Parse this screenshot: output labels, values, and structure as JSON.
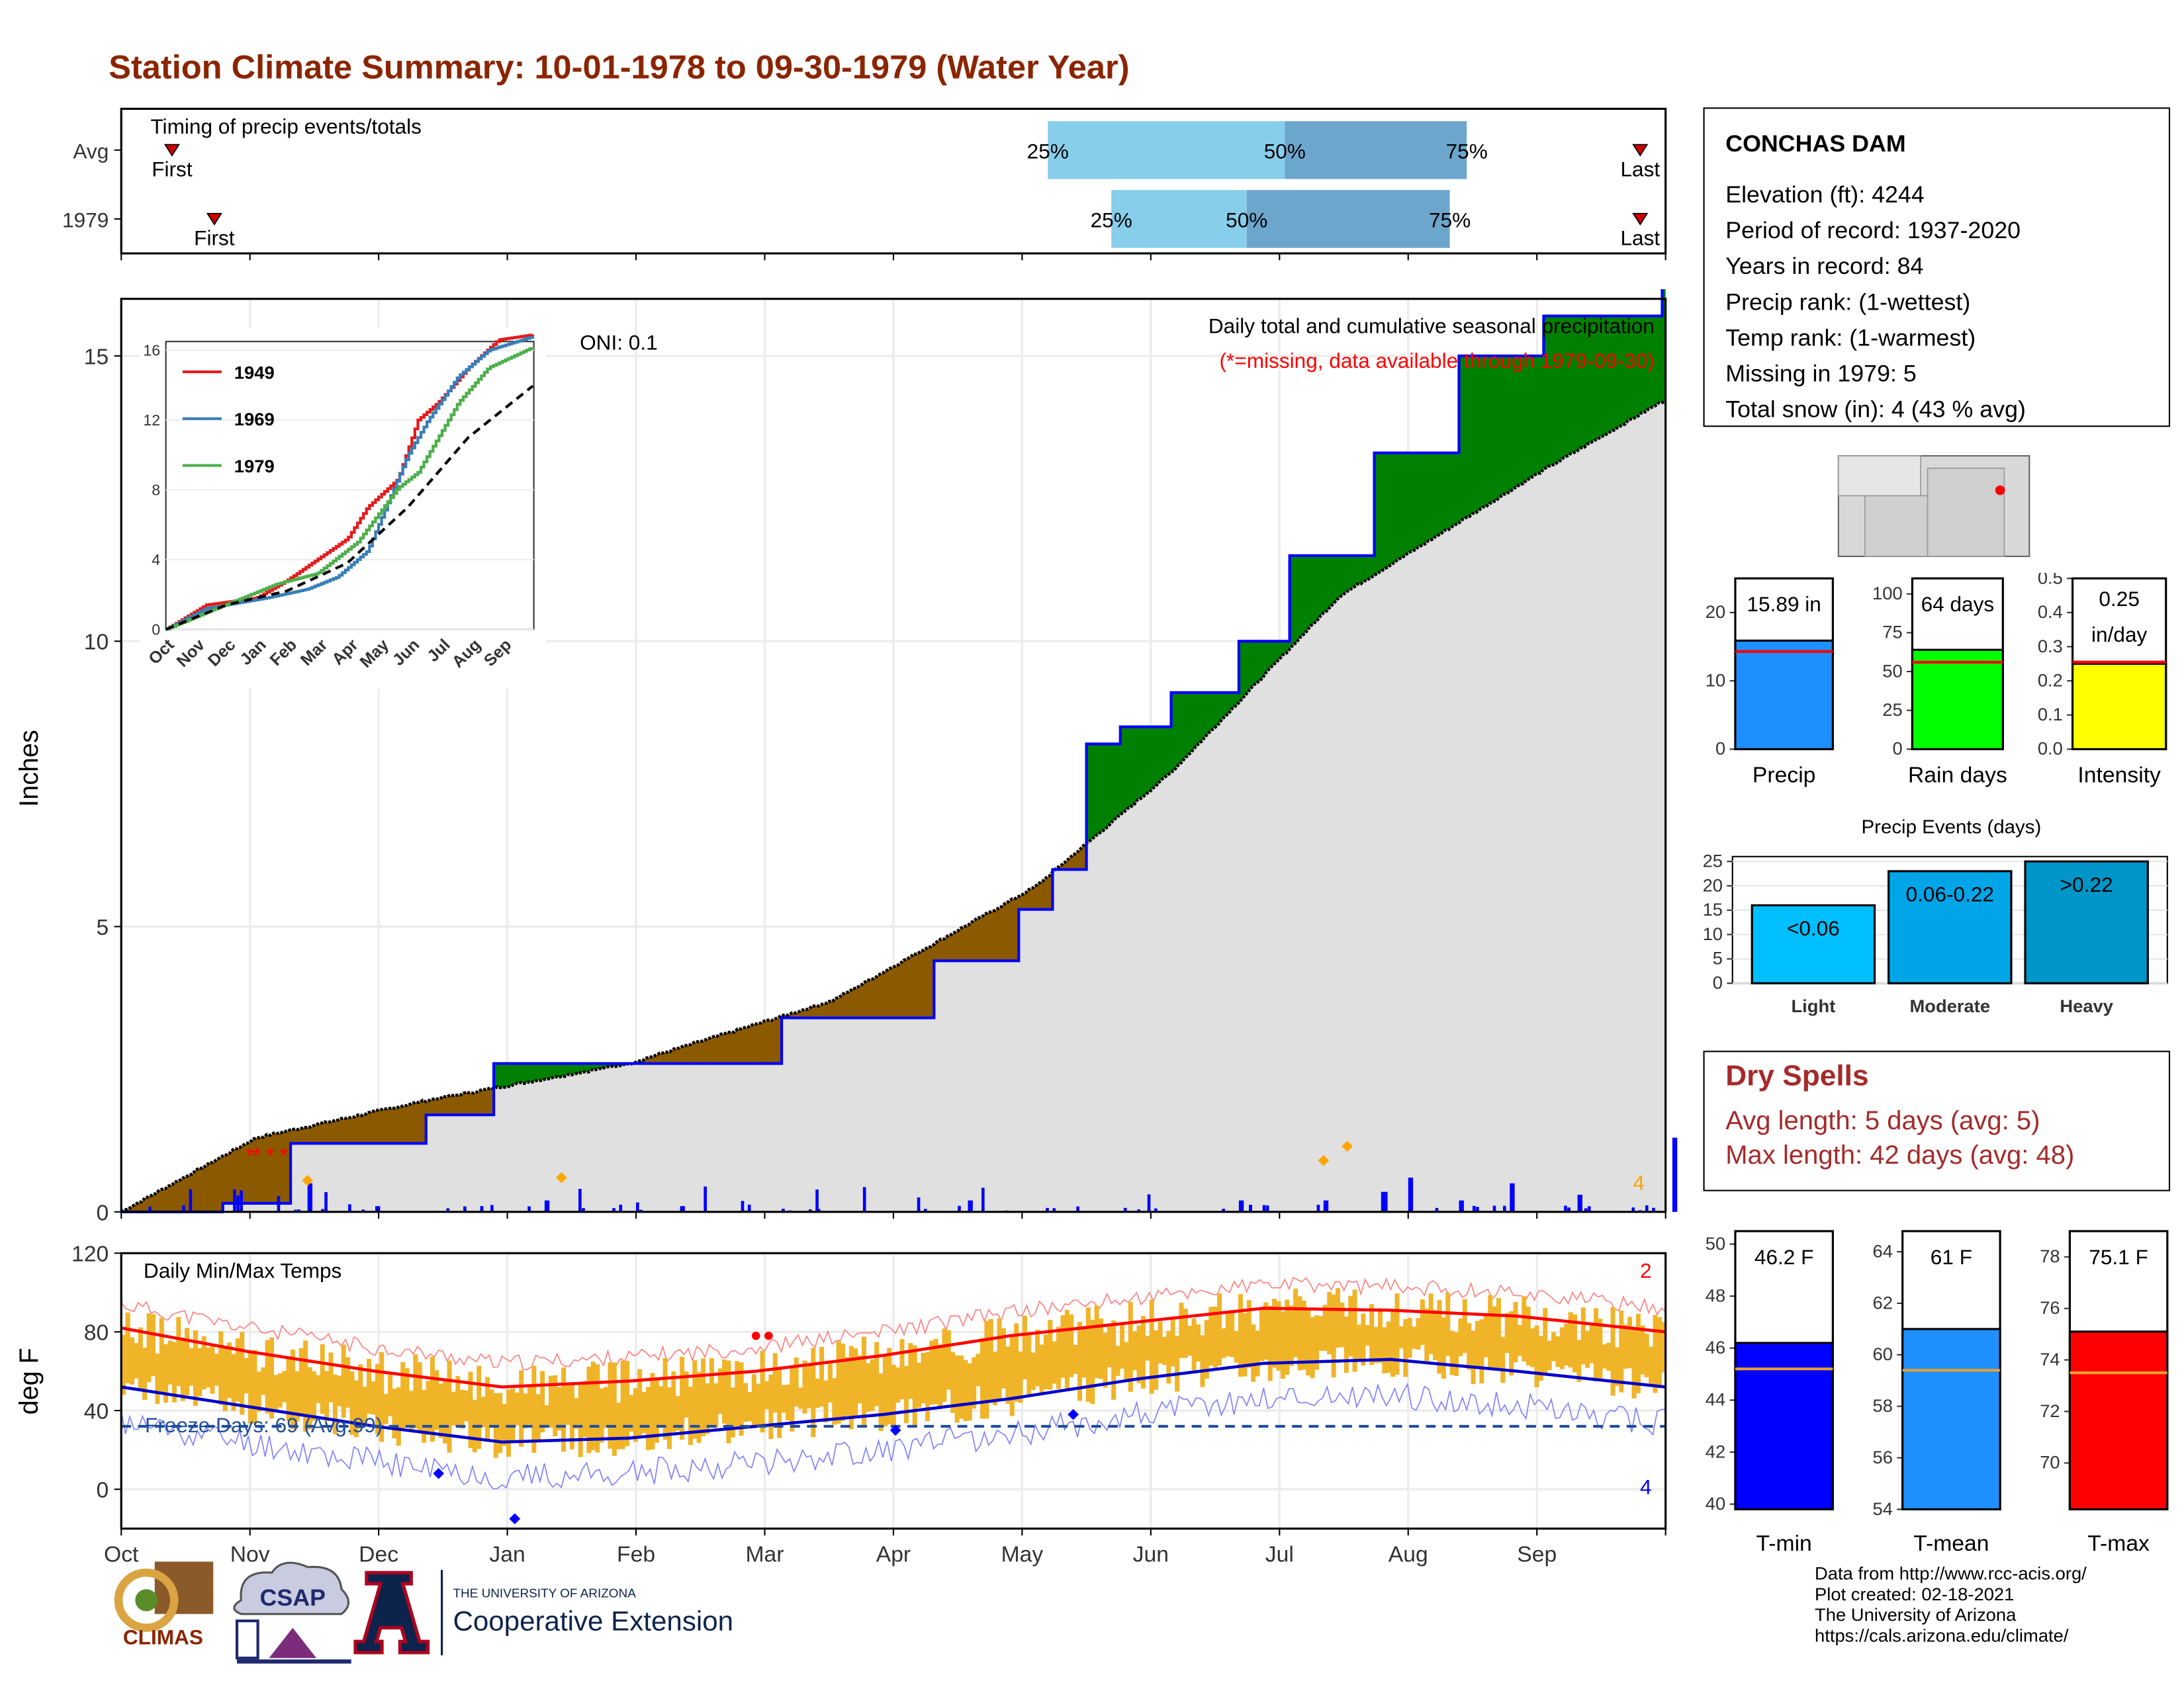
{
  "title": "Station Climate Summary: 10-01-1978 to 09-30-1979 (Water Year)",
  "timing": {
    "title": "Timing of precip events/totals",
    "rows": [
      {
        "label": "Avg",
        "first_date": "1978-10-13",
        "q25": "1979-05-08",
        "q50": "1979-07-03",
        "q75": "1979-08-15",
        "last_date": "1979-09-25"
      },
      {
        "label": "1979",
        "first_date": "1978-10-23",
        "q25": "1979-05-23",
        "q50": "1979-06-24",
        "q75": "1979-08-11",
        "last_date": "1979-09-25"
      }
    ],
    "first_label": "First",
    "last_label": "Last",
    "q25_label": "25%",
    "q50_label": "50%",
    "q75_label": "75%"
  },
  "station": {
    "name": "CONCHAS DAM",
    "lines": [
      "Elevation (ft): 4244",
      "Period of record: 1937-2020",
      "Years in record: 84",
      "Precip rank:  (1-wettest)",
      "Temp rank:  (1-warmest)",
      "Missing in 1979: 5",
      "Total snow (in): 4 (43 % avg)"
    ]
  },
  "precip_chart": {
    "ylabel": "Inches",
    "oni": "ONI: 0.1",
    "legend_title": "Daily total and cumulative seasonal precipitation",
    "legend_missing": "(*=missing, data available through 1979-09-30)",
    "snow_count": "4",
    "months": [
      "Oct",
      "Nov",
      "Dec",
      "Jan",
      "Feb",
      "Mar",
      "Apr",
      "May",
      "Jun",
      "Jul",
      "Aug",
      "Sep"
    ],
    "yticks": [
      0,
      5,
      10,
      15
    ]
  },
  "inset": {
    "yticks": [
      0,
      4,
      8,
      12,
      16
    ],
    "months": [
      "Oct",
      "Nov",
      "Dec",
      "Jan",
      "Feb",
      "Mar",
      "Apr",
      "May",
      "Jun",
      "Jul",
      "Aug",
      "Sep"
    ],
    "series": [
      {
        "name": "1949",
        "color": "#E41A1C"
      },
      {
        "name": "1969",
        "color": "#377EB8"
      },
      {
        "name": "1979",
        "color": "#4DAF4A"
      }
    ]
  },
  "bars": {
    "precip": {
      "value_label": "15.89 in",
      "value": 15.89,
      "avg": 14.3,
      "ylim": [
        0,
        25
      ],
      "yticks": [
        0,
        10,
        20
      ],
      "label": "Precip",
      "color": "#1E90FF"
    },
    "rain": {
      "value_label": "64 days",
      "value": 64,
      "avg": 56,
      "ylim": [
        0,
        110
      ],
      "yticks": [
        0,
        25,
        50,
        75,
        100
      ],
      "label": "Rain days",
      "color": "#00FF00"
    },
    "intensity": {
      "value_label1": "0.25",
      "value_label2": "in/day",
      "value": 0.25,
      "avg": 0.255,
      "ylim": [
        0,
        0.5
      ],
      "yticks": [
        "0.0",
        "0.1",
        "0.2",
        "0.3",
        "0.4",
        "0.5"
      ],
      "label": "Intensity",
      "color": "#FFFF00"
    }
  },
  "events": {
    "title": "Precip Events (days)",
    "ylim": [
      0,
      26
    ],
    "yticks": [
      0,
      5,
      10,
      15,
      20,
      25
    ],
    "categories": [
      "Light",
      "Moderate",
      "Heavy"
    ],
    "values": [
      16,
      23,
      25
    ],
    "labels": [
      "<0.06",
      "0.06-0.22",
      ">0.22"
    ],
    "colors": [
      "#00BFFF",
      "#00A5E8",
      "#0095C8"
    ]
  },
  "dry": {
    "title": "Dry Spells",
    "avg_line": "Avg length: 5 days (avg: 5)",
    "max_line": "Max length: 42 days (avg: 48)"
  },
  "temp_chart": {
    "ylabel": "deg F",
    "title": "Daily Min/Max Temps",
    "freeze": "Freeze Days: 69 (Avg:99)",
    "hot_count": "2",
    "cold_count": "4",
    "yticks": [
      0,
      40,
      80,
      120
    ],
    "months": [
      "Oct",
      "Nov",
      "Dec",
      "Jan",
      "Feb",
      "Mar",
      "Apr",
      "May",
      "Jun",
      "Jul",
      "Aug",
      "Sep"
    ]
  },
  "tbars": {
    "tmin": {
      "value_label": "46.2 F",
      "value": 46.2,
      "avg": 45.2,
      "ylim": [
        39.8,
        50.5
      ],
      "yticks": [
        40,
        42,
        44,
        46,
        48,
        50
      ],
      "label": "T-min",
      "color": "#0000FF"
    },
    "tmean": {
      "value_label": "61 F",
      "value": 61.0,
      "avg": 59.4,
      "ylim": [
        54,
        64.8
      ],
      "yticks": [
        54,
        56,
        58,
        60,
        62,
        64
      ],
      "label": "T-mean",
      "color": "#1E90FF"
    },
    "tmax": {
      "value_label": "75.1 F",
      "value": 75.1,
      "avg": 73.5,
      "ylim": [
        68.2,
        79
      ],
      "yticks": [
        70,
        72,
        74,
        76,
        78
      ],
      "label": "T-max",
      "color": "#FF0000"
    }
  },
  "source": [
    "Data from http://www.rcc-acis.org/",
    "Plot created: 02-18-2021",
    "The University of Arizona",
    "https://cals.arizona.edu/climate/"
  ],
  "logos": {
    "climas": "CLIMAS",
    "csap": "CSAP",
    "ua_small": "THE UNIVERSITY OF ARIZONA",
    "ua_big": "Cooperative Extension",
    "ua_letter": "A"
  },
  "chart_data": [
    {
      "type": "area",
      "title": "Daily total and cumulative seasonal precipitation",
      "ylabel": "Inches",
      "ylim": [
        0,
        16.0
      ],
      "months": [
        "Oct",
        "Nov",
        "Dec",
        "Jan",
        "Feb",
        "Mar",
        "Apr",
        "May",
        "Jun",
        "Jul",
        "Aug",
        "Sep"
      ],
      "cumulative_1979": [
        [
          0,
          0
        ],
        [
          30,
          0.15
        ],
        [
          50,
          1.2
        ],
        [
          90,
          1.7
        ],
        [
          110,
          2.6
        ],
        [
          170,
          2.6
        ],
        [
          195,
          3.4
        ],
        [
          240,
          4.4
        ],
        [
          265,
          5.3
        ],
        [
          275,
          6.0
        ],
        [
          285,
          8.2
        ],
        [
          295,
          8.5
        ],
        [
          310,
          9.1
        ],
        [
          330,
          10.0
        ],
        [
          345,
          11.5
        ],
        [
          370,
          13.3
        ],
        [
          395,
          15.0
        ],
        [
          420,
          15.7
        ],
        [
          455,
          16.2
        ]
      ],
      "cumulative_average": [
        [
          0,
          0
        ],
        [
          40,
          1.3
        ],
        [
          90,
          1.95
        ],
        [
          150,
          2.6
        ],
        [
          210,
          3.7
        ],
        [
          270,
          5.7
        ],
        [
          310,
          7.7
        ],
        [
          360,
          10.8
        ],
        [
          420,
          13.0
        ],
        [
          455,
          14.2
        ]
      ],
      "daily_precip": [
        [
          55,
          0.5
        ],
        [
          75,
          0.1
        ],
        [
          125,
          0.2
        ],
        [
          165,
          0.1
        ],
        [
          205,
          0.05
        ],
        [
          250,
          0.2
        ],
        [
          330,
          0.2
        ],
        [
          355,
          0.2
        ],
        [
          372,
          0.35
        ],
        [
          380,
          0.6
        ],
        [
          395,
          0.2
        ],
        [
          410,
          0.5
        ],
        [
          430,
          0.3
        ],
        [
          458,
          1.3
        ],
        [
          468,
          0.15
        ]
      ]
    },
    {
      "type": "line",
      "title": "Daily Min/Max Temps",
      "ylabel": "deg F",
      "ylim": [
        -20,
        120
      ],
      "months": [
        "Oct",
        "Nov",
        "Dec",
        "Jan",
        "Feb",
        "Mar",
        "Apr",
        "May",
        "Jun",
        "Jul",
        "Aug",
        "Sep"
      ],
      "avg_max": [
        [
          0,
          82
        ],
        [
          30,
          70
        ],
        [
          60,
          60
        ],
        [
          90,
          52
        ],
        [
          120,
          55
        ],
        [
          150,
          60
        ],
        [
          180,
          68
        ],
        [
          210,
          78
        ],
        [
          240,
          85
        ],
        [
          270,
          92
        ],
        [
          300,
          91
        ],
        [
          330,
          88
        ],
        [
          365,
          80
        ]
      ],
      "avg_min": [
        [
          0,
          52
        ],
        [
          30,
          42
        ],
        [
          60,
          32
        ],
        [
          90,
          24
        ],
        [
          120,
          26
        ],
        [
          150,
          32
        ],
        [
          180,
          38
        ],
        [
          210,
          46
        ],
        [
          240,
          56
        ],
        [
          270,
          64
        ],
        [
          300,
          66
        ],
        [
          330,
          60
        ],
        [
          365,
          52
        ]
      ],
      "freeze_line": 32
    }
  ]
}
